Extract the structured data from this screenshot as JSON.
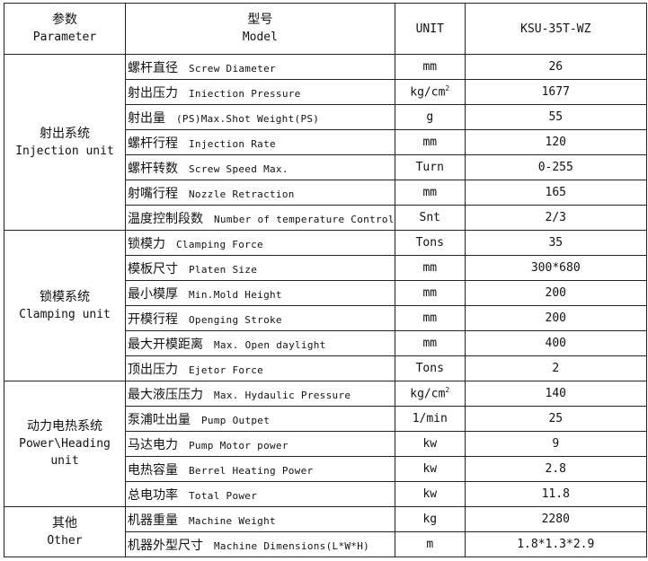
{
  "header": {
    "parameter_cn": "参数",
    "parameter_en": "Parameter",
    "model_cn": "型号",
    "model_en": "Model",
    "unit": "UNIT",
    "model_value": "KSU-35T-WZ"
  },
  "groups": [
    {
      "cn": "射出系统",
      "en": "Injection unit",
      "rows": [
        {
          "cn": "螺杆直径",
          "en": "Screw Diameter",
          "unit": "mm",
          "value": "26"
        },
        {
          "cn": "射出压力",
          "en": "Iniection Pressure",
          "unit": "kg/cm",
          "unit_sup": "2",
          "value": "1677"
        },
        {
          "cn": "射出量",
          "en": "(PS)Max.Shot Weight(PS)",
          "unit": "g",
          "value": "55"
        },
        {
          "cn": "螺杆行程",
          "en": "Injection  Rate",
          "unit": "mm",
          "value": "120"
        },
        {
          "cn": "螺杆转数",
          "en": "Screw Speed Max.",
          "unit": "Turn",
          "value": "0-255"
        },
        {
          "cn": "射嘴行程",
          "en": "Nozzle  Retraction",
          "unit": "mm",
          "value": "165"
        },
        {
          "cn": "温度控制段数",
          "en": "Number of temperature Control",
          "unit": "Snt",
          "value": "2/3"
        }
      ]
    },
    {
      "cn": "锁模系统",
      "en": "Clamping unit",
      "rows": [
        {
          "cn": "锁模力",
          "en": "Clamping Force",
          "unit": "Tons",
          "value": "35"
        },
        {
          "cn": "模板尺寸",
          "en": "Platen Size",
          "unit": "mm",
          "value": "300*680"
        },
        {
          "cn": "最小模厚",
          "en": "Min.Mold Height",
          "unit": "mm",
          "value": "200"
        },
        {
          "cn": "开模行程",
          "en": "Openging Stroke",
          "unit": "mm",
          "value": "200"
        },
        {
          "cn": "最大开模距离",
          "en": "Max. Open daylight",
          "unit": "mm",
          "value": "400"
        },
        {
          "cn": "顶出压力",
          "en": "Ejetor Force",
          "unit": "Tons",
          "value": "2"
        }
      ]
    },
    {
      "cn": "动力电热系统",
      "en": "Power\\Heading",
      "en2": "unit",
      "rows": [
        {
          "cn": "最大液压压力",
          "en": "Max. Hydaulic Pressure",
          "unit": "kg/cm",
          "unit_sup": "2",
          "value": "140"
        },
        {
          "cn": "泵浦吐出量",
          "en": "Pump Outpet",
          "unit": "1/min",
          "value": "25"
        },
        {
          "cn": "马达电力",
          "en": "Pump Motor power",
          "unit": "kw",
          "value": "9"
        },
        {
          "cn": "电热容量",
          "en": "Berrel Heating Power",
          "unit": "kw",
          "value": "2.8"
        },
        {
          "cn": "总电功率",
          "en": "Total Power",
          "unit": "kw",
          "value": "11.8"
        }
      ]
    },
    {
      "cn": "其他",
      "en": "Other",
      "rows": [
        {
          "cn": "机器重量",
          "en": "Machine Weight",
          "unit": "kg",
          "value": "2280"
        },
        {
          "cn": "机器外型尺寸",
          "en": "Machine Dimensions(L*W*H)",
          "unit": "m",
          "value": "1.8*1.3*2.9"
        }
      ]
    }
  ]
}
